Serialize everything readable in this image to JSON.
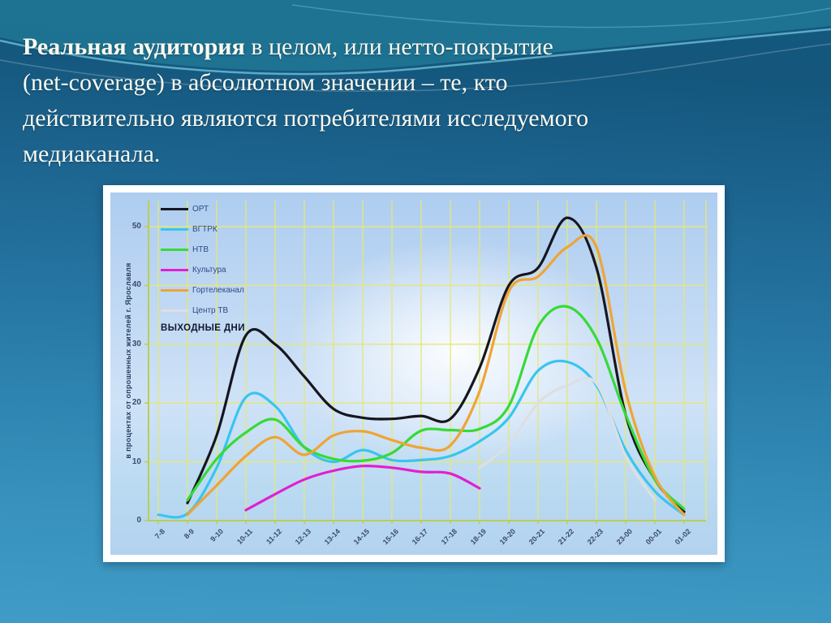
{
  "title": {
    "bold_lead": "Реальная аудитория",
    "line1_rest": " в целом, или нетто-покрытие",
    "line2": "(net-coverage) в абсолютном значении – те, кто",
    "line3": "действительно являются потребителями исследуемого",
    "line4": "медиаканала."
  },
  "chart_data": {
    "type": "line",
    "annotation": "ВЫХОДНЫЕ ДНИ",
    "ylabel": "в процентах от опрошенных жителей г. Ярославля",
    "grid": true,
    "legend_position": "top-left",
    "ylim": [
      0,
      53
    ],
    "y_ticks": [
      0,
      10,
      20,
      30,
      40,
      50
    ],
    "categories": [
      "7-8",
      "8-9",
      "9-10",
      "10-11",
      "11-12",
      "12-13",
      "13-14",
      "14-15",
      "15-16",
      "16-17",
      "17-18",
      "18-19",
      "19-20",
      "20-21",
      "21-22",
      "22-23",
      "23-00",
      "00-01",
      "01-02"
    ],
    "series": [
      {
        "id": "ort",
        "name": "ОРТ",
        "color": "#16161f",
        "values": [
          null,
          3,
          14.5,
          31.5,
          30,
          24.5,
          19,
          17.5,
          17.3,
          17.8,
          17.3,
          26,
          40,
          43,
          51.5,
          43,
          18,
          7,
          1.5
        ]
      },
      {
        "id": "vgtrk",
        "name": "ВГТРК",
        "color": "#38c5f0",
        "values": [
          1,
          1.2,
          9,
          21,
          19.5,
          12.5,
          10,
          12,
          10.3,
          10.3,
          11,
          13.5,
          17.5,
          25.5,
          27,
          23,
          12,
          5,
          1
        ]
      },
      {
        "id": "ntv",
        "name": "НТВ",
        "color": "#37da37",
        "values": [
          null,
          3.5,
          10.5,
          15,
          17.2,
          12.5,
          10.5,
          10.2,
          11.5,
          15.3,
          15.4,
          15.6,
          19.5,
          33,
          36.4,
          31,
          18,
          7,
          2
        ]
      },
      {
        "id": "kultura",
        "name": "Культура",
        "color": "#e11fd0",
        "values": [
          null,
          null,
          null,
          1.8,
          4.5,
          7,
          8.5,
          9.3,
          9,
          8.3,
          8,
          5.5,
          null,
          null,
          null,
          null,
          null,
          null,
          null
        ]
      },
      {
        "id": "gortelekanal",
        "name": "Гортелеканал",
        "color": "#efa437",
        "values": [
          null,
          1,
          6,
          11,
          14.2,
          11.2,
          14.5,
          15.2,
          13.7,
          12.4,
          12.8,
          22,
          39,
          41.5,
          46.5,
          46.5,
          22,
          7.5,
          1
        ]
      },
      {
        "id": "tsentr-tv",
        "name": "Центр ТВ",
        "color": "#dcdfe2",
        "values": [
          null,
          null,
          null,
          null,
          null,
          null,
          null,
          null,
          null,
          null,
          null,
          9,
          13,
          20,
          23,
          23.3,
          11,
          3.5,
          null
        ]
      }
    ]
  }
}
